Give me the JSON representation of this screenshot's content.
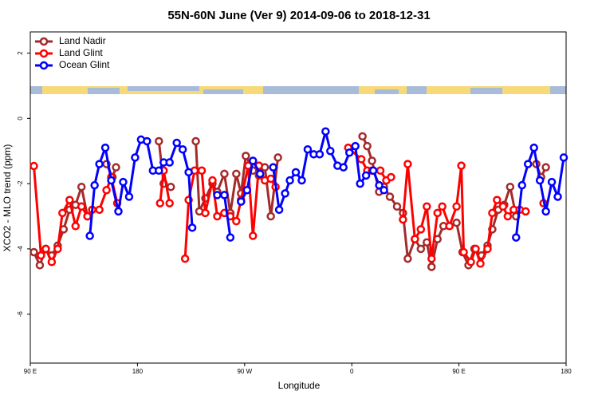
{
  "chart_data": {
    "type": "line",
    "title": "55N-60N June (Ver 9)   2014-09-06 to 2018-12-31",
    "x_label": "Longitude",
    "y_label": "XCO2 - MLO trend (ppm)",
    "xlim": [
      90,
      540
    ],
    "xticks": [
      {
        "value": 90,
        "label": "90 E"
      },
      {
        "value": 180,
        "label": "180"
      },
      {
        "value": 270,
        "label": "90 W"
      },
      {
        "value": 360,
        "label": "0"
      },
      {
        "value": 450,
        "label": "90 E"
      },
      {
        "value": 540,
        "label": "180"
      }
    ],
    "ylim": [
      -7.5,
      2.65
    ],
    "yticks": [
      -6,
      -4,
      -2,
      0,
      2
    ],
    "legend": "top-left",
    "series": [
      {
        "name": "Land Nadir",
        "color": "#a52a2a",
        "x": [
          93,
          98,
          103,
          108,
          113,
          118,
          123,
          128,
          133,
          138,
          null,
          154,
          159,
          162,
          null,
          198,
          202,
          208,
          null,
          229,
          232,
          237,
          243,
          247,
          253,
          258,
          263,
          267,
          271,
          277,
          282,
          287,
          292,
          298,
          null,
          369,
          373,
          377,
          383,
          387,
          392,
          398,
          403,
          407,
          413,
          418,
          423,
          427,
          432,
          437,
          442,
          448,
          453,
          458,
          463,
          469,
          474,
          478,
          483,
          488,
          493,
          498,
          null,
          515,
          519,
          523
        ],
        "values": [
          -4.1,
          -4.5,
          -4.0,
          -4.2,
          -3.9,
          -3.4,
          -2.8,
          -2.65,
          -2.1,
          -3.0,
          null,
          -1.4,
          -1.8,
          -1.5,
          null,
          -0.7,
          -2.0,
          -2.1,
          null,
          -0.7,
          -2.85,
          -2.45,
          -2.0,
          -2.25,
          -1.7,
          -2.9,
          -1.7,
          -2.3,
          -1.15,
          -1.6,
          -1.75,
          -1.5,
          -3.0,
          -1.2,
          null,
          -0.55,
          -0.85,
          -1.3,
          -2.25,
          -2.1,
          -2.4,
          -2.7,
          -2.9,
          -4.3,
          -3.7,
          -4.0,
          -3.8,
          -4.55,
          -3.7,
          -3.3,
          -3.3,
          -3.2,
          -4.1,
          -4.5,
          -4.0,
          -4.2,
          -3.9,
          -3.4,
          -2.8,
          -2.65,
          -2.1,
          -3.0,
          null,
          -1.4,
          -1.8,
          -1.5
        ]
      },
      {
        "name": "Land Glint",
        "color": "#ff0000",
        "x": [
          93,
          99,
          103,
          108,
          113,
          117,
          123,
          128,
          133,
          138,
          142,
          148,
          154,
          158,
          163,
          null,
          199,
          202,
          207,
          null,
          220,
          223,
          228,
          234,
          237,
          243,
          247,
          253,
          258,
          263,
          267,
          273,
          277,
          282,
          287,
          292,
          296,
          null,
          357,
          368,
          373,
          377,
          384,
          389,
          393,
          null,
          403,
          407,
          413,
          418,
          423,
          427,
          432,
          436,
          442,
          448,
          452,
          454,
          460,
          464,
          468,
          474,
          478,
          482,
          487,
          491,
          496,
          501,
          506,
          null,
          521
        ],
        "values": [
          -1.46,
          -4.2,
          -4.0,
          -4.4,
          -4.0,
          -2.9,
          -2.5,
          -3.3,
          -2.7,
          -3.0,
          -2.8,
          -2.8,
          -2.2,
          -1.8,
          -2.6,
          null,
          -2.6,
          -1.6,
          -2.6,
          null,
          -4.3,
          -2.5,
          -1.6,
          -1.6,
          -2.9,
          -1.9,
          -3.0,
          -2.9,
          -3.0,
          -3.15,
          -2.5,
          -1.45,
          -3.6,
          -1.45,
          -1.9,
          -1.85,
          -2.1,
          null,
          -0.9,
          -1.25,
          -1.6,
          -1.6,
          -1.6,
          -1.9,
          -1.8,
          null,
          -3.1,
          -1.4,
          -3.7,
          -3.4,
          -2.7,
          -4.3,
          -2.9,
          -2.7,
          -3.3,
          -2.7,
          -1.45,
          -4.1,
          -4.4,
          -4.0,
          -4.45,
          -4.0,
          -2.9,
          -2.5,
          -2.7,
          -3.0,
          -2.8,
          -2.8,
          -2.85,
          null,
          -2.6
        ]
      },
      {
        "name": "Ocean Glint",
        "color": "#0000ff",
        "x": [
          140,
          144,
          148,
          153,
          158,
          164,
          168,
          173,
          178,
          183,
          188,
          193,
          198,
          202,
          207,
          213,
          218,
          223,
          226,
          null,
          247,
          253,
          258,
          null,
          267,
          272,
          277,
          283,
          null,
          294,
          299,
          304,
          308,
          313,
          318,
          323,
          328,
          333,
          338,
          342,
          348,
          353,
          358,
          363,
          367,
          372,
          378,
          383,
          387,
          null,
          498,
          503,
          508,
          513,
          518,
          523,
          528,
          533,
          538
        ],
        "values": [
          -3.6,
          -2.05,
          -1.4,
          -0.9,
          -1.9,
          -2.85,
          -1.95,
          -2.4,
          -1.2,
          -0.65,
          -0.7,
          -1.6,
          -1.6,
          -1.35,
          -1.35,
          -0.75,
          -0.95,
          -1.65,
          -3.35,
          null,
          -2.35,
          -2.35,
          -3.65,
          null,
          -2.55,
          -2.2,
          -1.3,
          -1.7,
          null,
          -1.5,
          -2.8,
          -2.3,
          -1.9,
          -1.65,
          -1.9,
          -0.95,
          -1.1,
          -1.1,
          -0.4,
          -1.0,
          -1.45,
          -1.5,
          -1.05,
          -0.85,
          -2.0,
          -1.75,
          -1.6,
          -2.05,
          -2.2,
          null,
          -3.65,
          -2.05,
          -1.4,
          -0.9,
          -1.9,
          -2.85,
          -1.95,
          -2.4,
          -1.2
        ]
      }
    ]
  }
}
